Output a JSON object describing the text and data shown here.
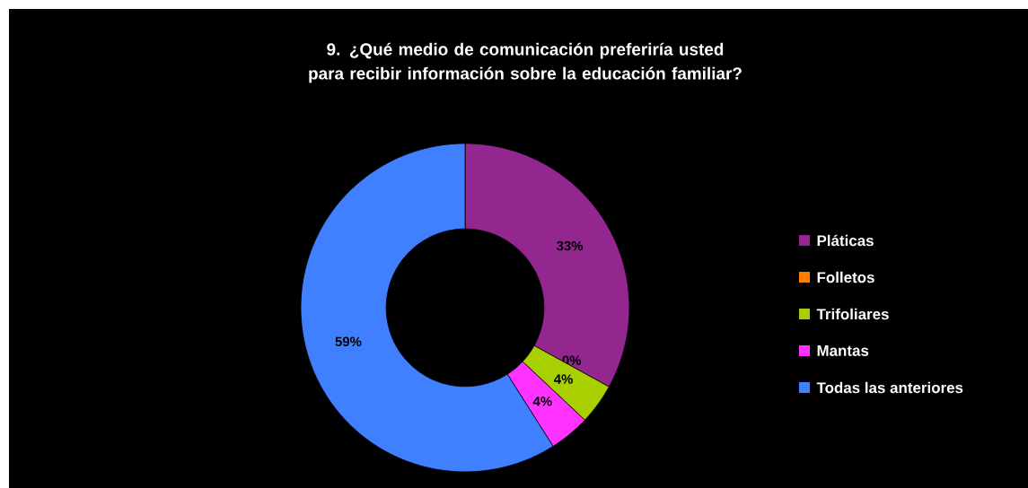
{
  "chart_data": {
    "type": "donut",
    "title": "9. ¿Qué medio de comunicación preferiría usted para recibir información sobre la educación familiar?",
    "categories": [
      "Pláticas",
      "Folletos",
      "Trifoliares",
      "Mantas",
      "Todas las anteriores"
    ],
    "values": [
      33,
      0,
      4,
      4,
      59
    ],
    "value_labels": [
      "33%",
      "0%",
      "4%",
      "4%",
      "59%"
    ],
    "colors": [
      "#93278f",
      "#ff7f00",
      "#a8d000",
      "#ff33ff",
      "#4080ff"
    ],
    "legend": "right"
  }
}
